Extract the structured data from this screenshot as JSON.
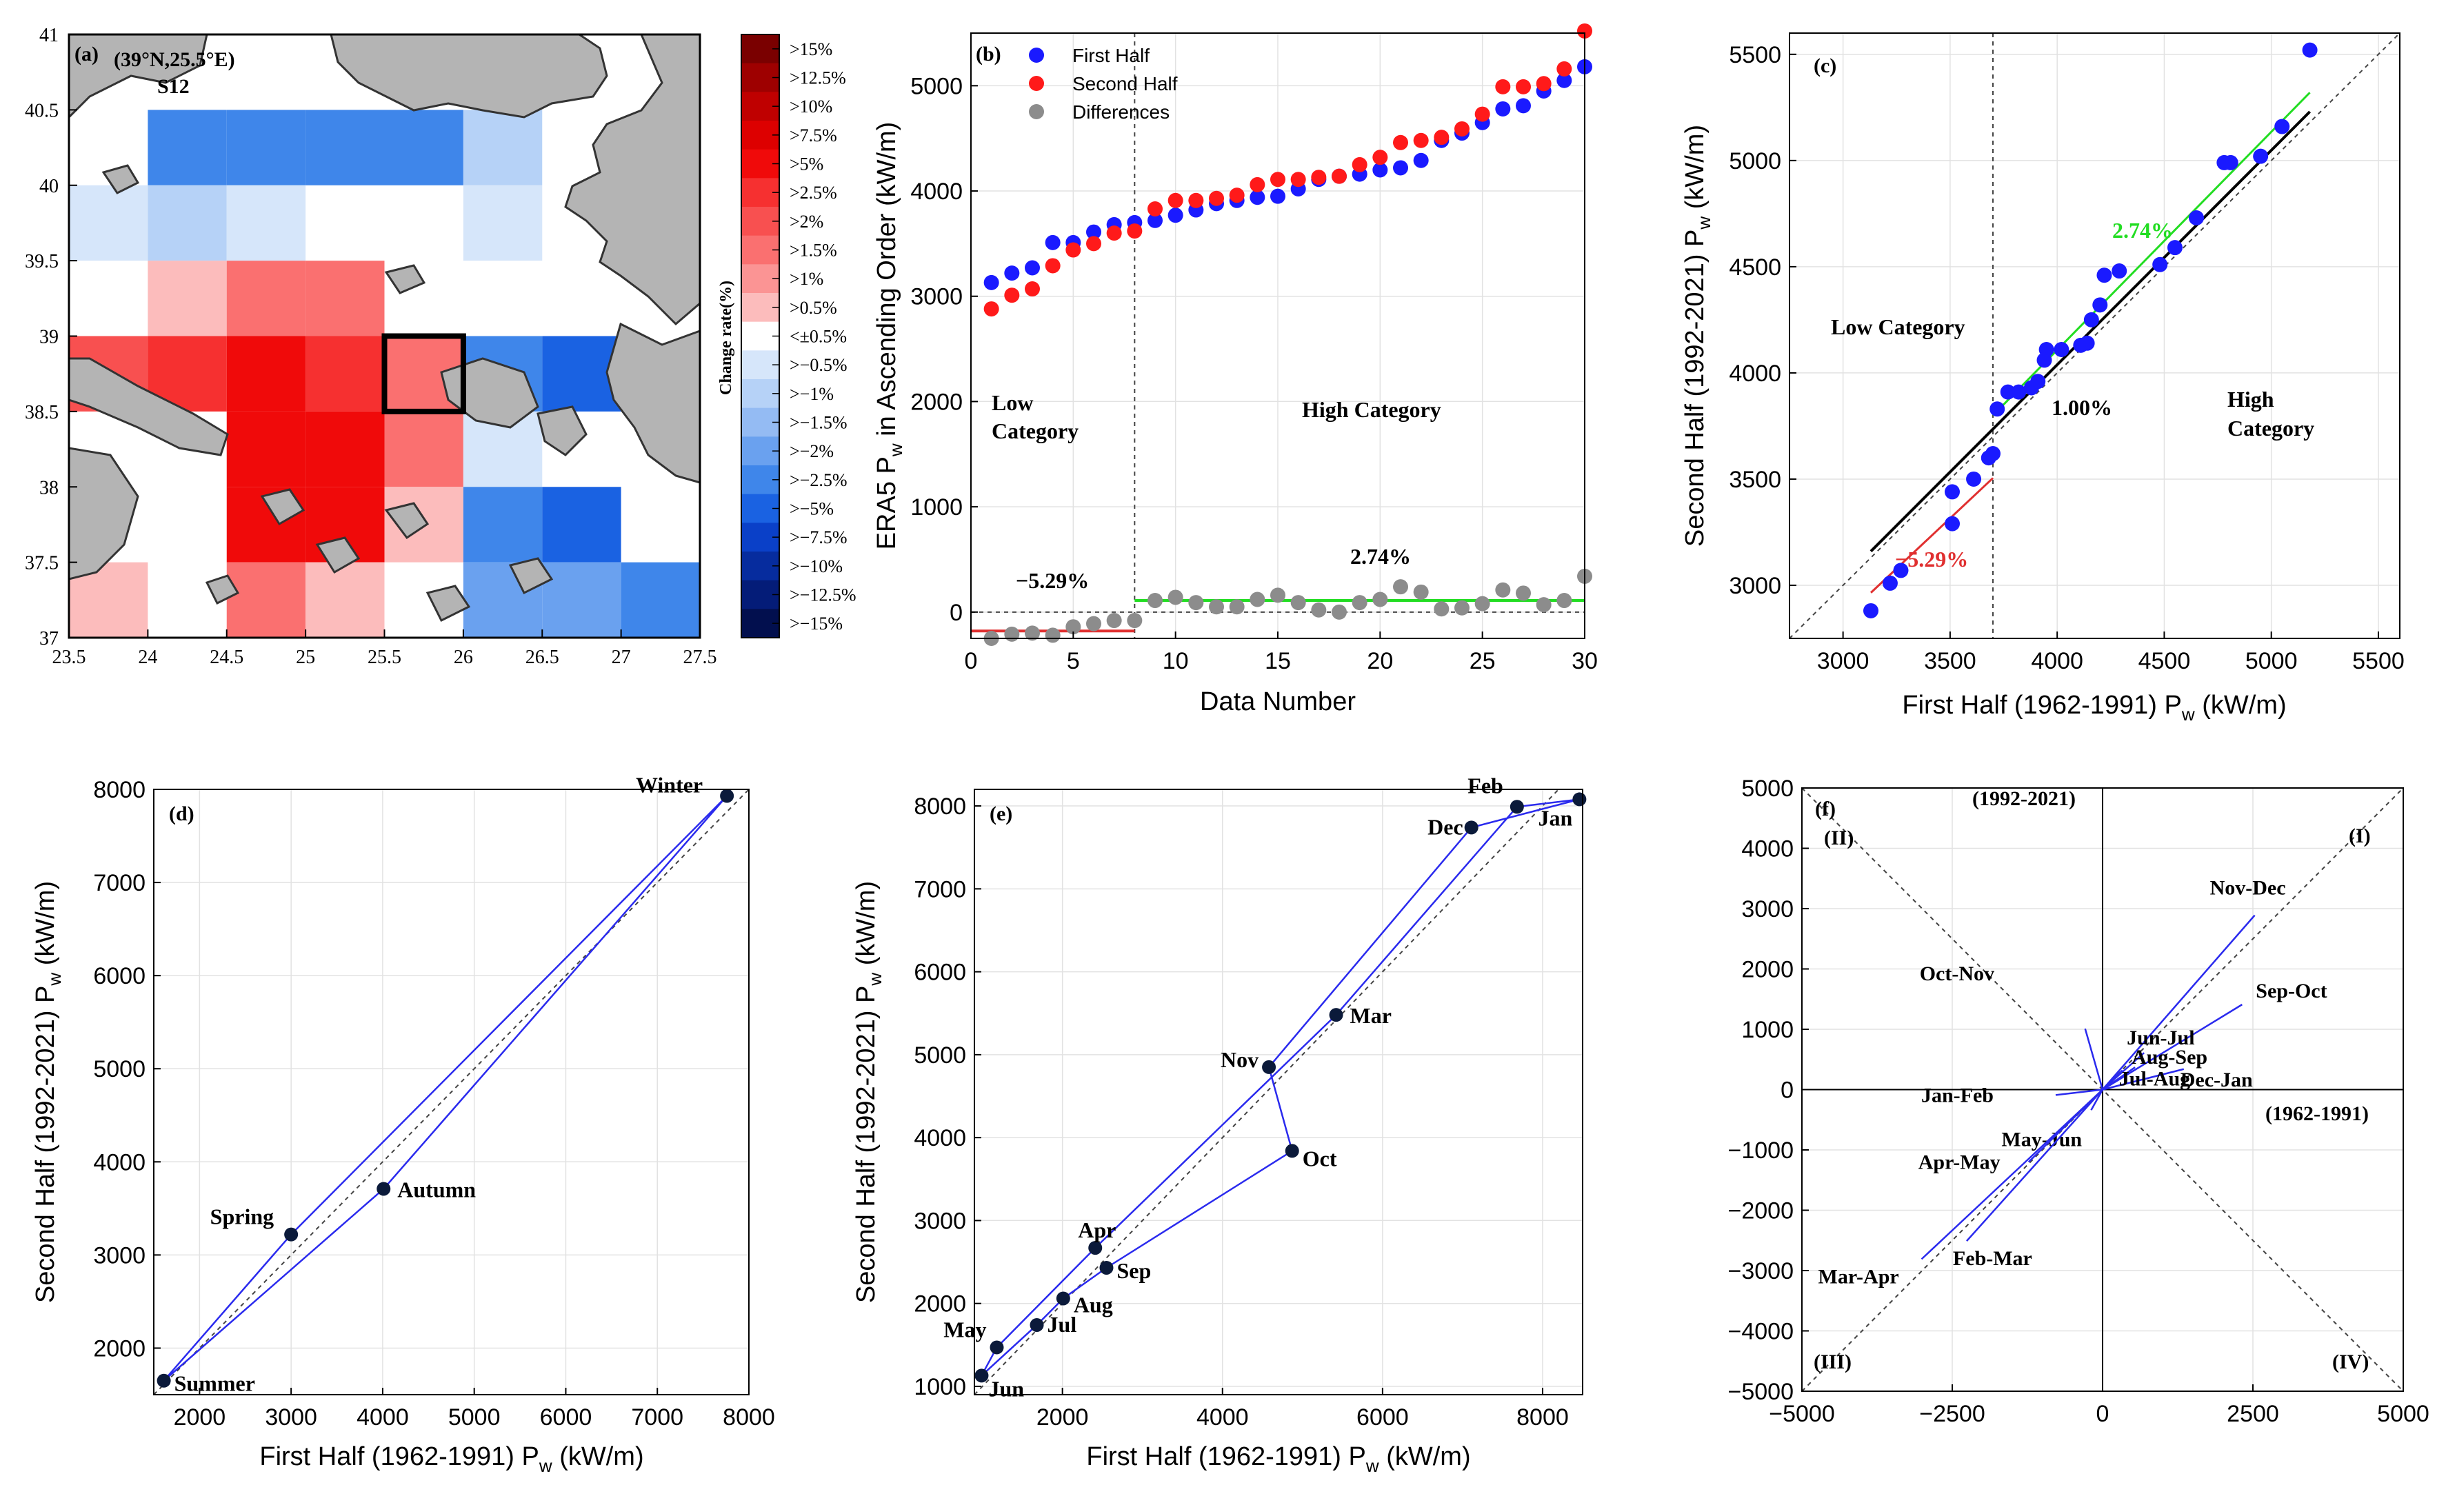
{
  "colors": {
    "blue_point": "#1a1aff",
    "red_point": "#ff1a1a",
    "gray_point": "#8c8c8c",
    "land": "#b4b4b4",
    "fit_green": "#22dd22",
    "fit_red": "#e03030",
    "fit_black": "#000000",
    "trajectory": "#2a2aee",
    "marker": "#0b1a3a"
  },
  "chart_data": [
    {
      "id": "a",
      "type": "heatmap",
      "panel_label": "(a)",
      "location_label": "(39°N,25.5°E)",
      "station_label": "S12",
      "x_ticks": [
        "23.5",
        "24",
        "24.5",
        "25",
        "25.5",
        "26",
        "26.5",
        "27",
        "27.5"
      ],
      "y_ticks": [
        "41",
        "40.5",
        "40",
        "39.5",
        "39",
        "38.5",
        "38",
        "37.5",
        "37"
      ],
      "xlim": [
        23.5,
        27.5
      ],
      "ylim": [
        37,
        41
      ],
      "colorbar_title": "Change rate(%)",
      "colorbar_labels": [
        ">15%",
        ">12.5%",
        ">10%",
        ">7.5%",
        ">5%",
        ">2.5%",
        ">2%",
        ">1.5%",
        ">1%",
        ">0.5%",
        "<±0.5%",
        ">−0.5%",
        ">−1%",
        ">−1.5%",
        ">−2%",
        ">−2.5%",
        ">−5%",
        ">−7.5%",
        ">−10%",
        ">−12.5%",
        ">−15%"
      ],
      "colorbar_colors": [
        "#7a0000",
        "#9e0000",
        "#bf0000",
        "#dd0000",
        "#f00a0a",
        "#f63030",
        "#f85050",
        "#fa7070",
        "#fb9494",
        "#fcbcbc",
        "#ffffff",
        "#d6e6fa",
        "#b6d2f7",
        "#94bbf3",
        "#6aa1ef",
        "#3f86ea",
        "#1a62e2",
        "#0a40c8",
        "#062c9e",
        "#041c78",
        "#020f4e"
      ],
      "cells": [
        {
          "lon": 24.0,
          "lat": 40.0,
          "level": ">−2.5%"
        },
        {
          "lon": 24.5,
          "lat": 40.0,
          "level": ">−2.5%"
        },
        {
          "lon": 25.0,
          "lat": 40.0,
          "level": ">−2.5%"
        },
        {
          "lon": 25.5,
          "lat": 40.0,
          "level": ">−2.5%"
        },
        {
          "lon": 26.0,
          "lat": 40.0,
          "level": ">−1%"
        },
        {
          "lon": 23.5,
          "lat": 39.5,
          "level": ">−0.5%"
        },
        {
          "lon": 24.0,
          "lat": 39.5,
          "level": ">−1%"
        },
        {
          "lon": 24.5,
          "lat": 39.5,
          "level": ">−0.5%"
        },
        {
          "lon": 26.0,
          "lat": 39.5,
          "level": ">−0.5%"
        },
        {
          "lon": 24.0,
          "lat": 39.0,
          "level": ">0.5%"
        },
        {
          "lon": 24.5,
          "lat": 39.0,
          "level": ">1.5%"
        },
        {
          "lon": 25.0,
          "lat": 39.0,
          "level": ">1.5%"
        },
        {
          "lon": 23.5,
          "lat": 38.5,
          "level": ">2%"
        },
        {
          "lon": 24.0,
          "lat": 38.5,
          "level": ">2.5%"
        },
        {
          "lon": 24.5,
          "lat": 38.5,
          "level": ">5%"
        },
        {
          "lon": 25.0,
          "lat": 38.5,
          "level": ">2.5%"
        },
        {
          "lon": 25.5,
          "lat": 38.5,
          "level": ">1.5%"
        },
        {
          "lon": 26.0,
          "lat": 38.5,
          "level": ">−2.5%"
        },
        {
          "lon": 26.5,
          "lat": 38.5,
          "level": ">−5%"
        },
        {
          "lon": 24.5,
          "lat": 38.0,
          "level": ">5%"
        },
        {
          "lon": 25.0,
          "lat": 38.0,
          "level": ">5%"
        },
        {
          "lon": 25.5,
          "lat": 38.0,
          "level": ">1.5%"
        },
        {
          "lon": 26.0,
          "lat": 38.0,
          "level": ">−0.5%"
        },
        {
          "lon": 24.5,
          "lat": 37.5,
          "level": ">5%"
        },
        {
          "lon": 25.0,
          "lat": 37.5,
          "level": ">5%"
        },
        {
          "lon": 25.5,
          "lat": 37.5,
          "level": ">0.5%"
        },
        {
          "lon": 26.0,
          "lat": 37.5,
          "level": ">−2.5%"
        },
        {
          "lon": 26.5,
          "lat": 37.5,
          "level": ">−5%"
        },
        {
          "lon": 23.5,
          "lat": 37.0,
          "level": ">0.5%"
        },
        {
          "lon": 24.5,
          "lat": 37.0,
          "level": ">1.5%"
        },
        {
          "lon": 25.0,
          "lat": 37.0,
          "level": ">0.5%"
        },
        {
          "lon": 26.0,
          "lat": 37.0,
          "level": ">−2%"
        },
        {
          "lon": 26.5,
          "lat": 37.0,
          "level": ">−2%"
        },
        {
          "lon": 27.0,
          "lat": 37.0,
          "level": ">−2.5%"
        }
      ],
      "highlight_cell": {
        "lon": 25.5,
        "lat": 38.5
      }
    },
    {
      "id": "b",
      "type": "scatter",
      "panel_label": "(b)",
      "xlabel": "Data Number",
      "ylabel_main": "ERA5 P",
      "ylabel_sub": "w",
      "ylabel_rest": " in Ascending Order (kW/m)",
      "xlim": [
        0,
        30
      ],
      "ylim": [
        -250,
        5500
      ],
      "x_ticks": [
        0,
        5,
        10,
        15,
        20,
        25,
        30
      ],
      "y_ticks": [
        0,
        1000,
        2000,
        3000,
        4000,
        5000
      ],
      "legend": [
        "First Half",
        "Second Half",
        "Differences"
      ],
      "split_x": 8,
      "low_label_1": "Low",
      "low_label_2": "Category",
      "high_label": "High Category",
      "low_rate": "−5.29%",
      "high_rate": "2.74%",
      "low_mean_diff": -180,
      "high_mean_diff": 110,
      "x": [
        1,
        2,
        3,
        4,
        5,
        6,
        7,
        8,
        9,
        10,
        11,
        12,
        13,
        14,
        15,
        16,
        17,
        18,
        19,
        20,
        21,
        22,
        23,
        24,
        25,
        26,
        27,
        28,
        29,
        30
      ],
      "series": [
        {
          "name": "First Half",
          "values": [
            3130,
            3220,
            3270,
            3510,
            3510,
            3610,
            3680,
            3700,
            3720,
            3770,
            3820,
            3880,
            3910,
            3940,
            3950,
            4020,
            4110,
            4140,
            4160,
            4200,
            4220,
            4290,
            4480,
            4550,
            4650,
            4780,
            4810,
            4950,
            5050,
            5180
          ]
        },
        {
          "name": "Second Half",
          "values": [
            2880,
            3010,
            3070,
            3290,
            3440,
            3500,
            3600,
            3620,
            3830,
            3910,
            3910,
            3930,
            3960,
            4060,
            4110,
            4110,
            4130,
            4140,
            4250,
            4320,
            4460,
            4480,
            4510,
            4590,
            4730,
            4990,
            4990,
            5020,
            5160,
            5520
          ]
        },
        {
          "name": "Differences",
          "values": [
            -250,
            -210,
            -200,
            -220,
            -140,
            -110,
            -80,
            -80,
            110,
            140,
            90,
            50,
            50,
            120,
            160,
            90,
            20,
            0,
            90,
            120,
            240,
            190,
            30,
            40,
            80,
            210,
            180,
            70,
            110,
            340
          ]
        }
      ]
    },
    {
      "id": "c",
      "type": "scatter",
      "panel_label": "(c)",
      "xlabel_main": "First Half (1962-1991) P",
      "xlabel_sub": "w",
      "xlabel_rest": " (kW/m)",
      "ylabel_main": "Second Half (1992-2021) P",
      "ylabel_sub": "w",
      "ylabel_rest": " (kW/m)",
      "xlim": [
        2750,
        5600
      ],
      "ylim": [
        2750,
        5600
      ],
      "x_ticks": [
        3000,
        3500,
        4000,
        4500,
        5000,
        5500
      ],
      "y_ticks": [
        3000,
        3500,
        4000,
        4500,
        5000,
        5500
      ],
      "split_x": 3700,
      "low_label": "Low Category",
      "high_label_1": "High",
      "high_label_2": "Category",
      "overall_rate": "1.00%",
      "low_rate": "−5.29%",
      "high_rate": "2.74%"
    },
    {
      "id": "d",
      "type": "line",
      "panel_label": "(d)",
      "xlabel_main": "First Half (1962-1991) P",
      "xlabel_sub": "w",
      "xlabel_rest": " (kW/m)",
      "ylabel_main": "Second Half (1992-2021) P",
      "ylabel_sub": "w",
      "ylabel_rest": " (kW/m)",
      "xlim": [
        1500,
        8000
      ],
      "ylim": [
        1500,
        8000
      ],
      "x_ticks": [
        2000,
        3000,
        4000,
        5000,
        6000,
        7000,
        8000
      ],
      "y_ticks": [
        2000,
        3000,
        4000,
        5000,
        6000,
        7000,
        8000
      ],
      "points": [
        {
          "label": "Winter",
          "x": 7760,
          "y": 7930
        },
        {
          "label": "Spring",
          "x": 3000,
          "y": 3220
        },
        {
          "label": "Summer",
          "x": 1610,
          "y": 1650
        },
        {
          "label": "Autumn",
          "x": 4010,
          "y": 3710
        }
      ]
    },
    {
      "id": "e",
      "type": "line",
      "panel_label": "(e)",
      "xlabel_main": "First Half (1962-1991) P",
      "xlabel_sub": "w",
      "xlabel_rest": " (kW/m)",
      "ylabel_main": "Second Half (1992-2021) P",
      "ylabel_sub": "w",
      "ylabel_rest": " (kW/m)",
      "xlim": [
        900,
        8500
      ],
      "ylim": [
        900,
        8200
      ],
      "x_ticks": [
        2000,
        4000,
        6000,
        8000
      ],
      "y_ticks": [
        1000,
        2000,
        3000,
        4000,
        5000,
        6000,
        7000,
        8000
      ],
      "points": [
        {
          "label": "Jan",
          "x": 8460,
          "y": 8080
        },
        {
          "label": "Feb",
          "x": 7680,
          "y": 7990
        },
        {
          "label": "Mar",
          "x": 5420,
          "y": 5480
        },
        {
          "label": "Apr",
          "x": 2410,
          "y": 2670
        },
        {
          "label": "May",
          "x": 1180,
          "y": 1470
        },
        {
          "label": "Jun",
          "x": 990,
          "y": 1130
        },
        {
          "label": "Jul",
          "x": 1680,
          "y": 1740
        },
        {
          "label": "Aug",
          "x": 2010,
          "y": 2060
        },
        {
          "label": "Sep",
          "x": 2550,
          "y": 2430
        },
        {
          "label": "Oct",
          "x": 4870,
          "y": 3840
        },
        {
          "label": "Nov",
          "x": 4580,
          "y": 4850
        },
        {
          "label": "Dec",
          "x": 7110,
          "y": 7740
        }
      ]
    },
    {
      "id": "f",
      "type": "line",
      "panel_label": "(f)",
      "xlim": [
        -5000,
        5000
      ],
      "ylim": [
        -5000,
        5000
      ],
      "x_ticks": [
        -5000,
        -2500,
        0,
        2500,
        5000
      ],
      "x_tick_labels": [
        "−5000",
        "−2500",
        "0",
        "2500",
        "5000"
      ],
      "y_ticks": [
        -5000,
        -4000,
        -3000,
        -2000,
        -1000,
        0,
        1000,
        2000,
        3000,
        4000,
        5000
      ],
      "y_tick_labels": [
        "−5000",
        "−4000",
        "−3000",
        "−2000",
        "−1000",
        "0",
        "1000",
        "2000",
        "3000",
        "4000",
        "5000"
      ],
      "axis_label_y": "(1992-2021)",
      "axis_label_x": "(1962-1991)",
      "quadrants": [
        "(I)",
        "(II)",
        "(III)",
        "(IV)"
      ],
      "vectors": [
        {
          "label": "Nov-Dec",
          "x": 2530,
          "y": 2890
        },
        {
          "label": "Sep-Oct",
          "x": 2320,
          "y": 1410
        },
        {
          "label": "Oct-Nov",
          "x": -290,
          "y": 1010
        },
        {
          "label": "Jun-Jul",
          "x": 690,
          "y": 610
        },
        {
          "label": "Aug-Sep",
          "x": 540,
          "y": 370
        },
        {
          "label": "Dec-Jan",
          "x": 1350,
          "y": 340
        },
        {
          "label": "Jan-Feb",
          "x": -780,
          "y": -90
        },
        {
          "label": "Jul-Aug",
          "x": 330,
          "y": 320
        },
        {
          "label": "May-Jun",
          "x": -190,
          "y": -340
        },
        {
          "label": "Apr-May",
          "x": -1230,
          "y": -1200
        },
        {
          "label": "Mar-Apr",
          "x": -3010,
          "y": -2810
        },
        {
          "label": "Feb-Mar",
          "x": -2260,
          "y": -2510
        }
      ]
    }
  ]
}
